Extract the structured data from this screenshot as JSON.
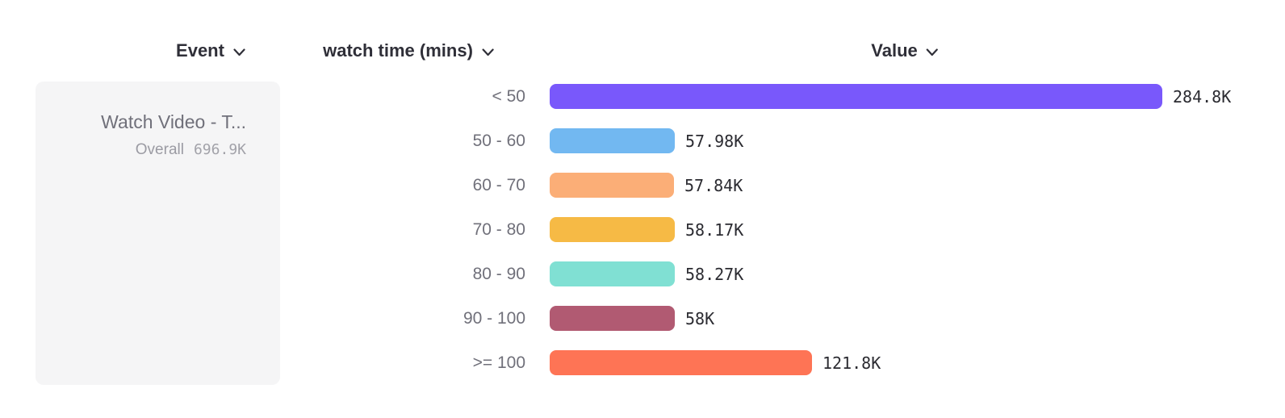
{
  "table": {
    "columns": [
      {
        "label": "Event"
      },
      {
        "label": "watch time (mins)"
      },
      {
        "label": "Value"
      }
    ]
  },
  "event_card": {
    "name": "Watch Video - T...",
    "overall_label": "Overall",
    "overall_value": "696.9K"
  },
  "chart_data": {
    "type": "bar",
    "orientation": "horizontal",
    "title": "",
    "xlabel": "Value",
    "ylabel": "watch time (mins)",
    "unit": "K",
    "categories": [
      "< 50",
      "50 - 60",
      "60 - 70",
      "70 - 80",
      "80 - 90",
      "90 - 100",
      ">= 100"
    ],
    "values_k": [
      284.8,
      57.98,
      57.84,
      58.17,
      58.27,
      58,
      121.8
    ],
    "value_labels": [
      "284.8K",
      "57.98K",
      "57.84K",
      "58.17K",
      "58.27K",
      "58K",
      "121.8K"
    ],
    "bar_colors": [
      "#7958fb",
      "#72b8f1",
      "#fbae77",
      "#f6ba45",
      "#80e0d3",
      "#b15a72",
      "#fe7455"
    ],
    "max_value_k": 284.8,
    "overall_total": "696.9K",
    "legend": "none",
    "grid": "off"
  },
  "colors": {
    "header_text": "#2f2f38",
    "category_label": "#70707a",
    "value_text": "#2b2b31",
    "card_background": "#f5f5f6"
  }
}
